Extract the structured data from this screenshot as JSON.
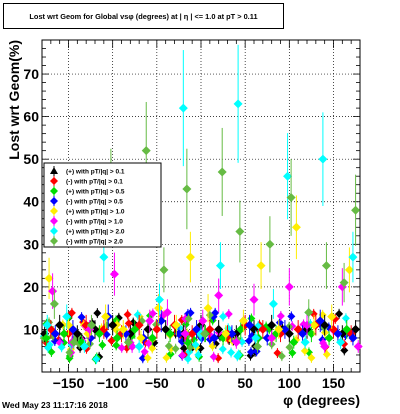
{
  "title": "Lost wrt Geom for Global vsφ (degrees) at | η | <= 1.0 at pT > 0.11",
  "timestamp": "Wed May 23 11:17:16 2018",
  "chart_data": {
    "type": "scatter",
    "title": "Lost wrt Geom for Global vsφ (degrees) at | η | <= 1.0 at pT > 0.11",
    "xlabel": "φ (degrees)",
    "ylabel": "Lost wrt Geom(%)",
    "xlim": [
      -180,
      180
    ],
    "ylim": [
      0,
      78
    ],
    "xticks": [
      -150,
      -100,
      -50,
      0,
      50,
      100,
      150
    ],
    "xtick_labels": [
      "−150",
      "−100",
      "−50",
      "0",
      "50",
      "100",
      "150"
    ],
    "yticks": [
      10,
      20,
      30,
      40,
      50,
      60,
      70
    ],
    "grid": true,
    "legend_position": "middle-left",
    "series": [
      {
        "name": "(+) with pT/|q| > 0.1",
        "color": "#000000",
        "marker": "triangle",
        "points": [
          [
            -177,
            9
          ],
          [
            -160,
            11
          ],
          [
            -140,
            9
          ],
          [
            -120,
            10
          ],
          [
            -100,
            11
          ],
          [
            -80,
            9
          ],
          [
            -60,
            10
          ],
          [
            -40,
            10
          ],
          [
            -20,
            9
          ],
          [
            0,
            11
          ],
          [
            20,
            10
          ],
          [
            40,
            9
          ],
          [
            60,
            10
          ],
          [
            80,
            11
          ],
          [
            100,
            9
          ],
          [
            120,
            10
          ],
          [
            140,
            11
          ],
          [
            160,
            9
          ],
          [
            175,
            10
          ]
        ]
      },
      {
        "name": "(-) with pT/|q| > 0.1",
        "color": "#ff0000",
        "marker": "diamond",
        "points": [
          [
            -170,
            10
          ],
          [
            -150,
            9
          ],
          [
            -130,
            11
          ],
          [
            -110,
            10
          ],
          [
            -90,
            9
          ],
          [
            -70,
            11
          ],
          [
            -50,
            10
          ],
          [
            -30,
            11
          ],
          [
            -10,
            9
          ],
          [
            10,
            10
          ],
          [
            30,
            9
          ],
          [
            50,
            11
          ],
          [
            70,
            10
          ],
          [
            90,
            9
          ],
          [
            110,
            10
          ],
          [
            130,
            11
          ],
          [
            150,
            10
          ],
          [
            170,
            9
          ]
        ]
      },
      {
        "name": "(+) with pT/|q| > 0.5",
        "color": "#00dd00",
        "marker": "diamond",
        "points": [
          [
            -175,
            8
          ],
          [
            -155,
            9
          ],
          [
            -135,
            7
          ],
          [
            -115,
            9
          ],
          [
            -95,
            8
          ],
          [
            -75,
            10
          ],
          [
            -55,
            8
          ],
          [
            -35,
            9
          ],
          [
            -15,
            7
          ],
          [
            5,
            9
          ],
          [
            25,
            8
          ],
          [
            45,
            10
          ],
          [
            65,
            8
          ],
          [
            85,
            9
          ],
          [
            105,
            7
          ],
          [
            125,
            9
          ],
          [
            145,
            8
          ],
          [
            165,
            10
          ]
        ]
      },
      {
        "name": "(-) with pT/|q| > 0.5",
        "color": "#0000ff",
        "marker": "diamond",
        "points": [
          [
            -165,
            9
          ],
          [
            -145,
            10
          ],
          [
            -125,
            8
          ],
          [
            -105,
            13
          ],
          [
            -85,
            9
          ],
          [
            -65,
            8
          ],
          [
            -45,
            12
          ],
          [
            -25,
            9
          ],
          [
            -5,
            10
          ],
          [
            15,
            8
          ],
          [
            35,
            9
          ],
          [
            55,
            11
          ],
          [
            75,
            8
          ],
          [
            95,
            10
          ],
          [
            115,
            9
          ],
          [
            135,
            12
          ],
          [
            155,
            9
          ],
          [
            172,
            8
          ]
        ]
      },
      {
        "name": "(+) with pT/|q| > 1.0",
        "color": "#ffee00",
        "marker": "diamond",
        "points": [
          [
            -172,
            22
          ],
          [
            -150,
            11
          ],
          [
            -128,
            9
          ],
          [
            -108,
            13
          ],
          [
            -88,
            10
          ],
          [
            -68,
            8
          ],
          [
            -48,
            15
          ],
          [
            -28,
            11
          ],
          [
            -12,
            27
          ],
          [
            8,
            15
          ],
          [
            28,
            9
          ],
          [
            48,
            12
          ],
          [
            68,
            25
          ],
          [
            88,
            10
          ],
          [
            108,
            34
          ],
          [
            128,
            11
          ],
          [
            148,
            13
          ],
          [
            168,
            24
          ]
        ]
      },
      {
        "name": "(-) with pT/|q| > 1.0",
        "color": "#ff00ff",
        "marker": "diamond",
        "points": [
          [
            -168,
            19
          ],
          [
            -146,
            7
          ],
          [
            -126,
            10
          ],
          [
            -98,
            23
          ],
          [
            -78,
            6
          ],
          [
            -58,
            12
          ],
          [
            -38,
            14
          ],
          [
            -18,
            9
          ],
          [
            2,
            12
          ],
          [
            20,
            18
          ],
          [
            40,
            7
          ],
          [
            60,
            17
          ],
          [
            80,
            8
          ],
          [
            100,
            20
          ],
          [
            120,
            11
          ],
          [
            140,
            6
          ],
          [
            160,
            20
          ],
          [
            178,
            6
          ]
        ]
      },
      {
        "name": "(+) with pT/|q| > 2.0",
        "color": "#00ffff",
        "marker": "diamond",
        "points": [
          [
            -174,
            11
          ],
          [
            -152,
            13
          ],
          [
            -132,
            6
          ],
          [
            -110,
            27
          ],
          [
            -90,
            38
          ],
          [
            -70,
            6
          ],
          [
            -47,
            17
          ],
          [
            -20,
            62
          ],
          [
            0,
            9
          ],
          [
            22,
            25
          ],
          [
            42,
            63
          ],
          [
            62,
            8
          ],
          [
            82,
            16
          ],
          [
            98,
            46
          ],
          [
            118,
            7
          ],
          [
            138,
            50
          ],
          [
            158,
            7
          ],
          [
            172,
            27
          ]
        ]
      },
      {
        "name": "(-) with pT/|q| > 2.0",
        "color": "#66bb44",
        "marker": "diamond",
        "points": [
          [
            -166,
            16
          ],
          [
            -144,
            7
          ],
          [
            -124,
            11
          ],
          [
            -102,
            43
          ],
          [
            -82,
            7
          ],
          [
            -62,
            52
          ],
          [
            -42,
            24
          ],
          [
            -16,
            43
          ],
          [
            4,
            9
          ],
          [
            24,
            47
          ],
          [
            44,
            33
          ],
          [
            64,
            6
          ],
          [
            78,
            30
          ],
          [
            102,
            41
          ],
          [
            122,
            14
          ],
          [
            142,
            25
          ],
          [
            162,
            21
          ],
          [
            175,
            38
          ]
        ]
      }
    ],
    "noise_band": [
      3,
      14
    ]
  }
}
